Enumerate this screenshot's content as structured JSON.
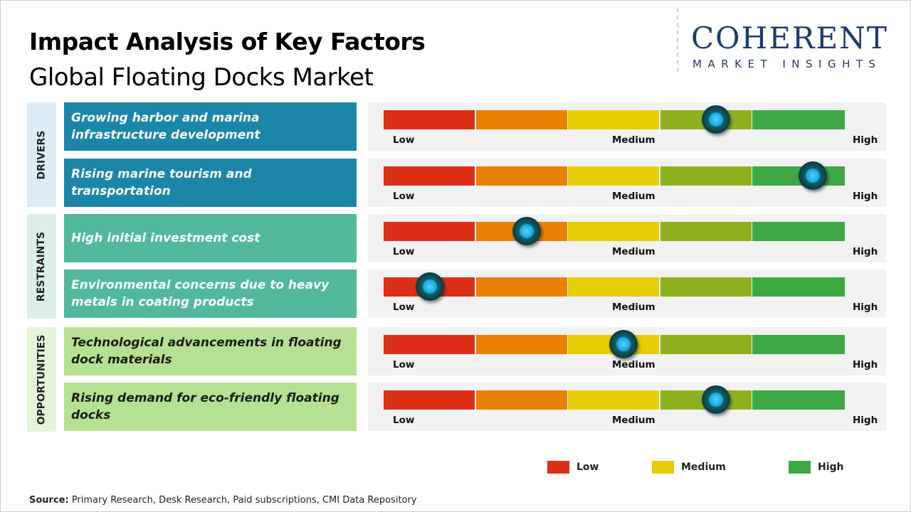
{
  "title": "Impact Analysis of Key Factors",
  "subtitle": "Global Floating Docks Market",
  "logo": {
    "line1": "COHERENT",
    "line2": "MARKET INSIGHTS"
  },
  "colors": {
    "segments": [
      "#dd2e18",
      "#ea8002",
      "#e6cd05",
      "#8fb120",
      "#3ea844"
    ],
    "drivers": "#1b86a8",
    "restraints": "#52b99b",
    "opportunities": "#b7e192"
  },
  "scale_labels": {
    "low": "Low",
    "medium": "Medium",
    "high": "High"
  },
  "chart_data": {
    "type": "gauge",
    "title": "Impact Analysis of Key Factors",
    "scale": [
      "Low",
      "Medium",
      "High"
    ],
    "categories": [
      {
        "name": "DRIVERS",
        "factors": [
          {
            "label": "Growing harbor and marina infrastructure development",
            "impact": 0.72
          },
          {
            "label": "Rising marine tourism and transportation",
            "impact": 0.93
          }
        ]
      },
      {
        "name": "RESTRAINTS",
        "factors": [
          {
            "label": "High initial investment cost",
            "impact": 0.31
          },
          {
            "label": "Environmental concerns due to heavy metals in coating products",
            "impact": 0.1
          }
        ]
      },
      {
        "name": "OPPORTUNITIES",
        "factors": [
          {
            "label": "Technological advancements in floating dock materials",
            "impact": 0.52
          },
          {
            "label": "Rising demand for eco-friendly floating docks",
            "impact": 0.72
          }
        ]
      }
    ]
  },
  "legend": [
    {
      "label": "Low",
      "color": "#dd2e18"
    },
    {
      "label": "Medium",
      "color": "#e6cd05"
    },
    {
      "label": "High",
      "color": "#3ea844"
    }
  ],
  "source": {
    "label": "Source:",
    "text": " Primary Research, Desk Research, Paid subscriptions, CMI Data Repository"
  }
}
